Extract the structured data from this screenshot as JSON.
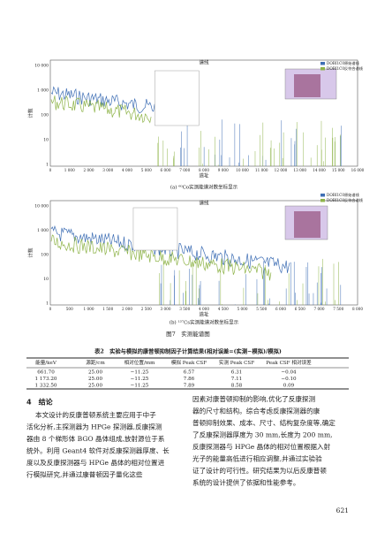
{
  "figures": [
    {
      "title": "谱线",
      "legend": [
        "DOBI1C0原始谱线",
        "DOBI1C0反符合谱线"
      ],
      "y_label": "计数",
      "x_label": "道址",
      "yticks": [
        "10 000",
        "1 000",
        "100",
        "10",
        "1"
      ],
      "xticks": [
        "0",
        "1 000",
        "2 000",
        "3 000",
        "4 000",
        "5 000",
        "6 000",
        "7 000",
        "8 000",
        "9 000",
        "10 000",
        "11 000",
        "12 000",
        "13 000",
        "14 000",
        "15 000",
        "16 000"
      ],
      "caption": "(a) ⁶⁰Co实测能谱对数坐标显示"
    },
    {
      "title": "谱线",
      "legend": [
        "DOBI1C0原始谱线",
        "DOBI1C0反符合谱线"
      ],
      "y_label": "计数",
      "x_label": "道址",
      "yticks": [
        "10 000",
        "1 000",
        "100",
        "10",
        "1"
      ],
      "xticks": [
        "0",
        "500",
        "1 000",
        "1 500",
        "2 000",
        "2 500",
        "3 000",
        "3 500",
        "4 000",
        "4 500",
        "5 000",
        "5 500",
        "6 000",
        "6 500",
        "7 000",
        "7 500",
        "8 000"
      ],
      "caption": "(b) ¹³⁷Cs实测能谱对数坐标显示"
    }
  ],
  "figure_label": "图7　实测能谱图",
  "table": {
    "caption": "表2　实验与模拟的康普顿抑制因子计算结果(相对误差=(实测−模拟)/模拟)",
    "header": [
      "能量/keV",
      "源距/cm",
      "相对位置/mm",
      "模拟 Peak CSF",
      "实测 Peak CSF",
      "Peak CSF 相对误差"
    ],
    "rows": [
      [
        "661.70",
        "25.00",
        "−11.25",
        "6.57",
        "6.31",
        "−0.04"
      ],
      [
        "1 173.20",
        "25.00",
        "−11.25",
        "7.86",
        "7.11",
        "−0.10"
      ],
      [
        "1 332.50",
        "25.00",
        "−11.25",
        "7.89",
        "8.58",
        "0.09"
      ]
    ]
  },
  "section": {
    "heading": "4　结论",
    "left_lines": [
      "本文设计的反康普顿系统主要应用于中子",
      "活化分析,主探测器为 HPGe 探测器,反康探测",
      "器由 8 个梯形体 BGO 晶体组成,放射源位于系",
      "统外。利用 Geant4 软件对反康探测器厚度、长",
      "度以及反康探测器与 HPGe 晶体的相对位置进",
      "行模拟研究,并通过康普顿因子量化这些"
    ],
    "right_lines": [
      "因素对康普顿抑制的影响,优化了反康探测",
      "器的尺寸和结构。综合考虑反康探测器的康",
      "普顿抑制效果、成本、尺寸、结构复杂度等,确定",
      "了反康探测器厚度为 30 mm,长度为 200 mm,",
      "反康探测器与 HPGe 晶体的相对位置根据入射",
      "光子的能量高低进行相应调整,并通过实验验",
      "证了设计的可行性。研究结果为以后反康普顿",
      "系统的设计提供了依据和性能参考。"
    ]
  },
  "page_number": "621"
}
